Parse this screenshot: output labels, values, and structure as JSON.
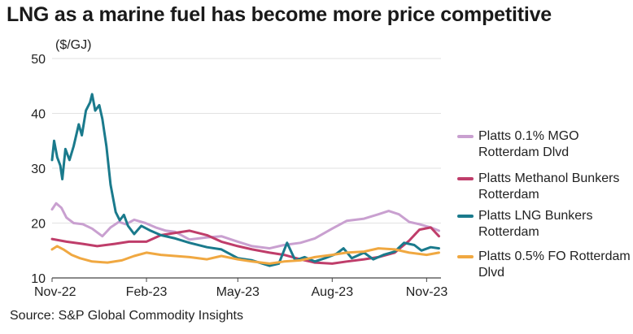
{
  "chart_data": {
    "type": "line",
    "title": "LNG as a marine fuel has become more price competitive",
    "ylabel": "($/GJ)",
    "xlabel": "",
    "ylim": [
      10,
      50
    ],
    "yticks": [
      10,
      20,
      30,
      40,
      50
    ],
    "xlim": [
      "2022-11-01",
      "2023-11-15"
    ],
    "xticks": [
      {
        "label": "Nov-22",
        "date": "2022-11-01"
      },
      {
        "label": "Feb-23",
        "date": "2023-02-01"
      },
      {
        "label": "May-23",
        "date": "2023-05-01"
      },
      {
        "label": "Aug-23",
        "date": "2023-08-01"
      },
      {
        "label": "Nov-23",
        "date": "2023-11-01"
      }
    ],
    "grid": true,
    "legend_position": "right",
    "source": "Source: S&P Global Commodity Insights",
    "series": [
      {
        "name": "Platts 0.1% MGO Rotterdam Dlvd",
        "color": "#c9a0d0",
        "points": [
          [
            "2022-11-01",
            22.5
          ],
          [
            "2022-11-05",
            23.6
          ],
          [
            "2022-11-10",
            22.8
          ],
          [
            "2022-11-15",
            21.0
          ],
          [
            "2022-11-22",
            20.0
          ],
          [
            "2022-12-01",
            19.8
          ],
          [
            "2022-12-10",
            19.0
          ],
          [
            "2022-12-20",
            17.6
          ],
          [
            "2022-12-28",
            19.2
          ],
          [
            "2023-01-05",
            20.2
          ],
          [
            "2023-01-12",
            19.8
          ],
          [
            "2023-01-20",
            20.6
          ],
          [
            "2023-01-31",
            20.0
          ],
          [
            "2023-02-10",
            19.2
          ],
          [
            "2023-02-20",
            18.6
          ],
          [
            "2023-03-01",
            18.4
          ],
          [
            "2023-03-15",
            17.0
          ],
          [
            "2023-04-01",
            17.4
          ],
          [
            "2023-04-15",
            17.6
          ],
          [
            "2023-05-01",
            16.6
          ],
          [
            "2023-05-15",
            15.8
          ],
          [
            "2023-06-01",
            15.4
          ],
          [
            "2023-06-15",
            16.0
          ],
          [
            "2023-07-01",
            16.4
          ],
          [
            "2023-07-15",
            17.2
          ],
          [
            "2023-08-01",
            19.0
          ],
          [
            "2023-08-15",
            20.4
          ],
          [
            "2023-09-01",
            20.8
          ],
          [
            "2023-09-15",
            21.6
          ],
          [
            "2023-09-25",
            22.2
          ],
          [
            "2023-10-05",
            21.6
          ],
          [
            "2023-10-15",
            20.2
          ],
          [
            "2023-10-25",
            19.8
          ],
          [
            "2023-11-05",
            19.2
          ],
          [
            "2023-11-13",
            18.6
          ]
        ]
      },
      {
        "name": "Platts Methanol Bunkers Rotterdam",
        "color": "#bf3d6a",
        "points": [
          [
            "2022-11-01",
            17.1
          ],
          [
            "2022-11-15",
            16.6
          ],
          [
            "2022-12-01",
            16.2
          ],
          [
            "2022-12-15",
            15.8
          ],
          [
            "2023-01-01",
            16.2
          ],
          [
            "2023-01-15",
            16.6
          ],
          [
            "2023-02-01",
            16.6
          ],
          [
            "2023-02-15",
            17.8
          ],
          [
            "2023-03-01",
            18.2
          ],
          [
            "2023-03-15",
            18.6
          ],
          [
            "2023-04-01",
            17.8
          ],
          [
            "2023-04-15",
            16.6
          ],
          [
            "2023-05-01",
            15.8
          ],
          [
            "2023-05-15",
            15.2
          ],
          [
            "2023-06-01",
            14.6
          ],
          [
            "2023-06-15",
            14.2
          ],
          [
            "2023-07-01",
            13.4
          ],
          [
            "2023-07-15",
            12.8
          ],
          [
            "2023-08-01",
            12.6
          ],
          [
            "2023-08-15",
            13.0
          ],
          [
            "2023-09-01",
            13.4
          ],
          [
            "2023-09-15",
            13.8
          ],
          [
            "2023-10-01",
            14.6
          ],
          [
            "2023-10-15",
            16.8
          ],
          [
            "2023-10-25",
            18.8
          ],
          [
            "2023-11-05",
            19.2
          ],
          [
            "2023-11-13",
            17.6
          ]
        ]
      },
      {
        "name": "Platts LNG Bunkers Rotterdam",
        "color": "#1a7a8c",
        "points": [
          [
            "2022-11-01",
            31.5
          ],
          [
            "2022-11-03",
            35.0
          ],
          [
            "2022-11-06",
            32.0
          ],
          [
            "2022-11-09",
            30.5
          ],
          [
            "2022-11-11",
            28.0
          ],
          [
            "2022-11-14",
            33.5
          ],
          [
            "2022-11-18",
            31.5
          ],
          [
            "2022-11-22",
            34.0
          ],
          [
            "2022-11-27",
            38.0
          ],
          [
            "2022-11-30",
            36.0
          ],
          [
            "2022-12-04",
            40.5
          ],
          [
            "2022-12-08",
            42.0
          ],
          [
            "2022-12-10",
            43.5
          ],
          [
            "2022-12-13",
            40.5
          ],
          [
            "2022-12-17",
            41.5
          ],
          [
            "2022-12-20",
            39.0
          ],
          [
            "2022-12-24",
            34.0
          ],
          [
            "2022-12-28",
            27.0
          ],
          [
            "2023-01-02",
            22.0
          ],
          [
            "2023-01-06",
            20.5
          ],
          [
            "2023-01-10",
            21.5
          ],
          [
            "2023-01-14",
            19.5
          ],
          [
            "2023-01-20",
            18.0
          ],
          [
            "2023-01-27",
            19.5
          ],
          [
            "2023-02-05",
            18.6
          ],
          [
            "2023-02-15",
            17.8
          ],
          [
            "2023-03-01",
            17.2
          ],
          [
            "2023-03-15",
            16.4
          ],
          [
            "2023-04-01",
            15.6
          ],
          [
            "2023-04-15",
            15.2
          ],
          [
            "2023-05-01",
            13.6
          ],
          [
            "2023-05-15",
            13.2
          ],
          [
            "2023-06-01",
            12.2
          ],
          [
            "2023-06-10",
            12.6
          ],
          [
            "2023-06-18",
            16.4
          ],
          [
            "2023-06-26",
            13.2
          ],
          [
            "2023-07-05",
            13.8
          ],
          [
            "2023-07-15",
            13.0
          ],
          [
            "2023-07-25",
            13.6
          ],
          [
            "2023-08-05",
            14.4
          ],
          [
            "2023-08-12",
            15.4
          ],
          [
            "2023-08-20",
            13.6
          ],
          [
            "2023-09-01",
            14.6
          ],
          [
            "2023-09-10",
            13.4
          ],
          [
            "2023-09-20",
            14.2
          ],
          [
            "2023-10-01",
            14.8
          ],
          [
            "2023-10-10",
            16.4
          ],
          [
            "2023-10-20",
            16.0
          ],
          [
            "2023-10-27",
            15.0
          ],
          [
            "2023-11-05",
            15.6
          ],
          [
            "2023-11-13",
            15.4
          ]
        ]
      },
      {
        "name": "Platts 0.5% FO Rotterdam Dlvd",
        "color": "#f0a841",
        "points": [
          [
            "2022-11-01",
            15.2
          ],
          [
            "2022-11-06",
            15.8
          ],
          [
            "2022-11-12",
            15.2
          ],
          [
            "2022-11-20",
            14.2
          ],
          [
            "2022-11-28",
            13.6
          ],
          [
            "2022-12-10",
            13.0
          ],
          [
            "2022-12-25",
            12.8
          ],
          [
            "2023-01-08",
            13.2
          ],
          [
            "2023-01-20",
            14.0
          ],
          [
            "2023-02-01",
            14.6
          ],
          [
            "2023-02-15",
            14.2
          ],
          [
            "2023-03-01",
            14.0
          ],
          [
            "2023-03-15",
            13.8
          ],
          [
            "2023-04-01",
            13.4
          ],
          [
            "2023-04-15",
            14.0
          ],
          [
            "2023-05-01",
            13.4
          ],
          [
            "2023-05-15",
            13.0
          ],
          [
            "2023-06-01",
            12.6
          ],
          [
            "2023-06-15",
            13.0
          ],
          [
            "2023-07-01",
            13.2
          ],
          [
            "2023-07-15",
            13.8
          ],
          [
            "2023-08-01",
            14.2
          ],
          [
            "2023-08-15",
            14.6
          ],
          [
            "2023-09-01",
            14.8
          ],
          [
            "2023-09-15",
            15.4
          ],
          [
            "2023-10-01",
            15.2
          ],
          [
            "2023-10-15",
            14.6
          ],
          [
            "2023-11-01",
            14.2
          ],
          [
            "2023-11-13",
            14.6
          ]
        ]
      }
    ]
  }
}
